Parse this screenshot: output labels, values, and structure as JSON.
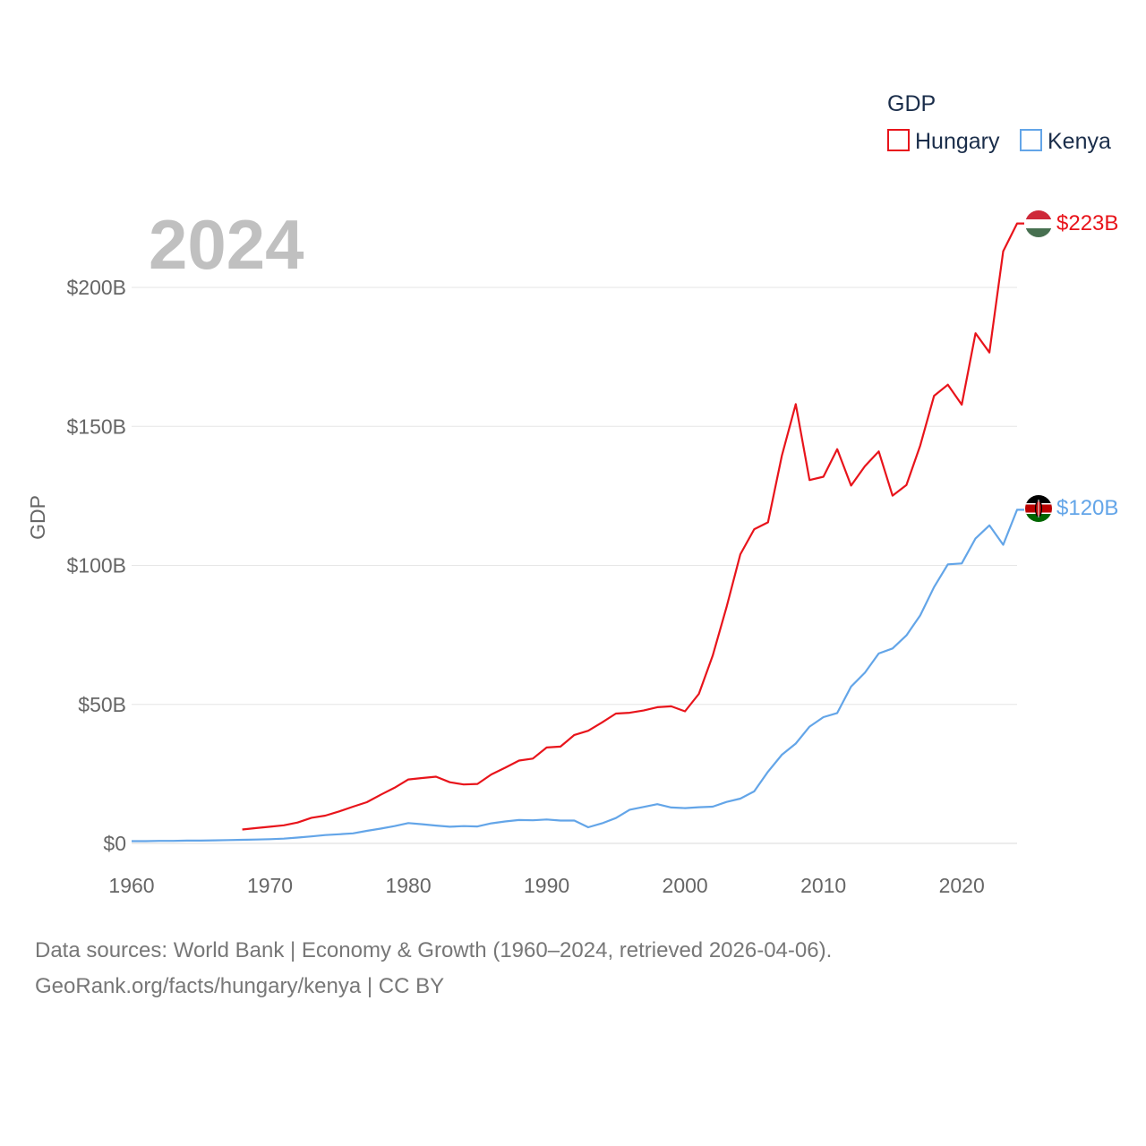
{
  "chart_data": {
    "type": "line",
    "title": "",
    "year_label": "2024",
    "xlabel": "",
    "ylabel": "GDP",
    "xlim": [
      1960,
      2024
    ],
    "ylim": [
      0,
      200
    ],
    "y_unit": "billions USD",
    "x_ticks": [
      "1960",
      "1970",
      "1980",
      "1990",
      "2000",
      "2010",
      "2020"
    ],
    "y_ticks": [
      {
        "value": 0,
        "label": "$0"
      },
      {
        "value": 50,
        "label": "$50B"
      },
      {
        "value": 100,
        "label": "$100B"
      },
      {
        "value": 150,
        "label": "$150B"
      },
      {
        "value": 200,
        "label": "$200B"
      }
    ],
    "grid": true,
    "legend": {
      "title": "GDP",
      "placement": "top-right"
    },
    "series": [
      {
        "name": "Hungary",
        "color": "#e8141b",
        "end_label": "$223B",
        "flag": "hungary-flag",
        "x": [
          1968,
          1969,
          1970,
          1971,
          1972,
          1973,
          1974,
          1975,
          1976,
          1977,
          1978,
          1979,
          1980,
          1981,
          1982,
          1983,
          1984,
          1985,
          1986,
          1987,
          1988,
          1989,
          1990,
          1991,
          1992,
          1993,
          1994,
          1995,
          1996,
          1997,
          1998,
          1999,
          2000,
          2001,
          2002,
          2003,
          2004,
          2005,
          2006,
          2007,
          2008,
          2009,
          2010,
          2011,
          2012,
          2013,
          2014,
          2015,
          2016,
          2017,
          2018,
          2019,
          2020,
          2021,
          2022,
          2023,
          2024
        ],
        "values": [
          5,
          5.5,
          6,
          6.5,
          7.5,
          9.2,
          10,
          11.5,
          13.2,
          14.8,
          17.5,
          20,
          23,
          23.5,
          24,
          22,
          21.2,
          21.4,
          24.8,
          27.2,
          29.8,
          30.5,
          34.5,
          34.8,
          39,
          40.5,
          43.5,
          46.7,
          47,
          47.8,
          49,
          49.3,
          47.5,
          53.8,
          67.5,
          85,
          104,
          113,
          115.5,
          139.5,
          158,
          130.7,
          131.9,
          141.8,
          128.7,
          135.7,
          141,
          125.1,
          128.9,
          143.1,
          161,
          165,
          157.8,
          183.5,
          176.6,
          213,
          223
        ]
      },
      {
        "name": "Kenya",
        "color": "#63a5e8",
        "end_label": "$120B",
        "flag": "kenya-flag",
        "x": [
          1960,
          1961,
          1962,
          1963,
          1964,
          1965,
          1966,
          1967,
          1968,
          1969,
          1970,
          1971,
          1972,
          1973,
          1974,
          1975,
          1976,
          1977,
          1978,
          1979,
          1980,
          1981,
          1982,
          1983,
          1984,
          1985,
          1986,
          1987,
          1988,
          1989,
          1990,
          1991,
          1992,
          1993,
          1994,
          1995,
          1996,
          1997,
          1998,
          1999,
          2000,
          2001,
          2002,
          2003,
          2004,
          2005,
          2006,
          2007,
          2008,
          2009,
          2010,
          2011,
          2012,
          2013,
          2014,
          2015,
          2016,
          2017,
          2018,
          2019,
          2020,
          2021,
          2022,
          2023,
          2024
        ],
        "values": [
          0.8,
          0.8,
          0.9,
          0.9,
          1,
          1,
          1.1,
          1.2,
          1.3,
          1.4,
          1.5,
          1.7,
          2.1,
          2.5,
          3,
          3.3,
          3.6,
          4.5,
          5.3,
          6.2,
          7.3,
          6.9,
          6.4,
          6,
          6.2,
          6.1,
          7.2,
          7.9,
          8.4,
          8.3,
          8.6,
          8.2,
          8.2,
          5.8,
          7.2,
          9.1,
          12.1,
          13.1,
          14.1,
          12.9,
          12.7,
          13,
          13.2,
          14.9,
          16.1,
          18.7,
          25.8,
          31.9,
          35.9,
          42,
          45.4,
          46.9,
          56.4,
          61.4,
          68.3,
          70.1,
          74.8,
          82,
          92.2,
          100.4,
          100.7,
          109.7,
          114.4,
          107.4,
          120
        ]
      }
    ]
  },
  "footer": {
    "line1": "Data sources: World Bank | Economy & Growth (1960–2024, retrieved 2026-04-06).",
    "line2": "GeoRank.org/facts/hungary/kenya | CC BY"
  }
}
